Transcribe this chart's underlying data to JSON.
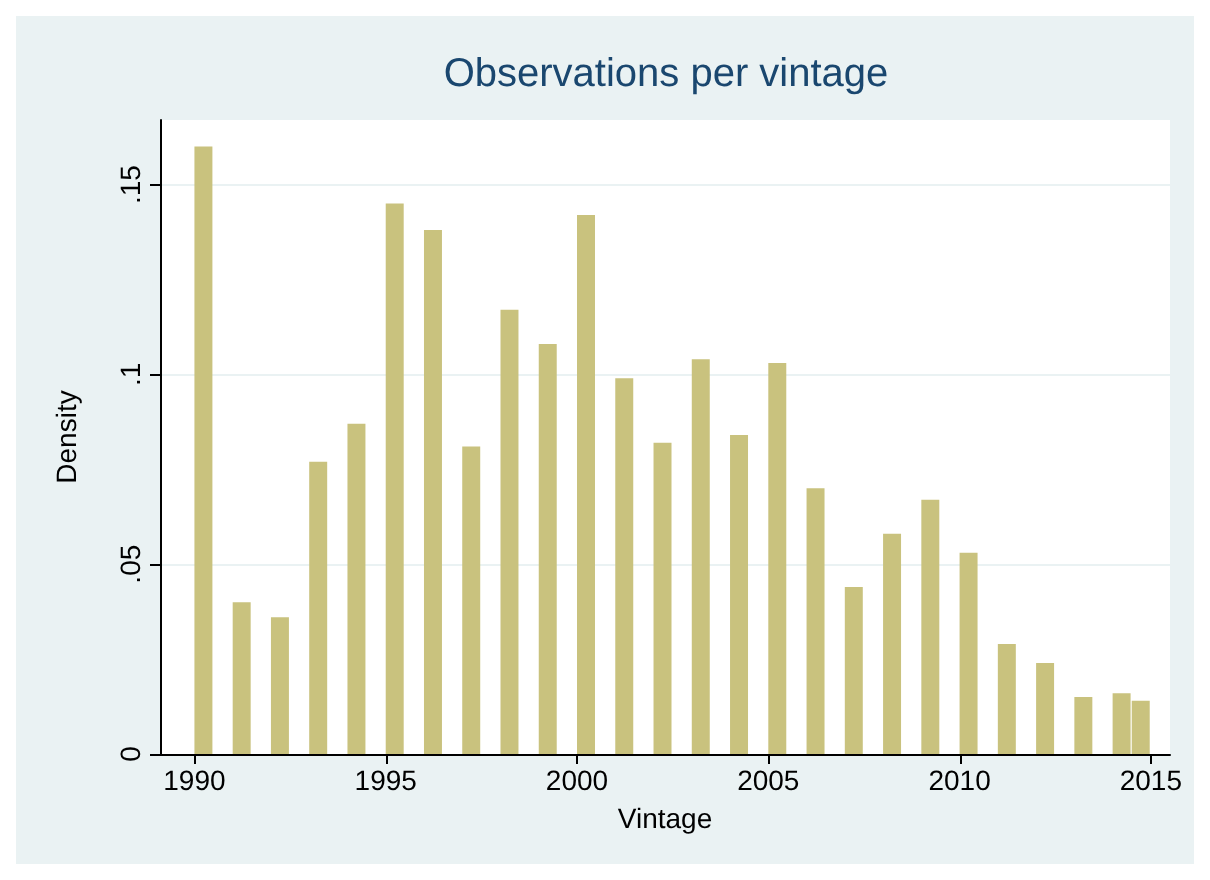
{
  "chart_data": {
    "type": "histogram",
    "title": "Observations per vintage",
    "xlabel": "Vintage",
    "ylabel": "Density",
    "color": "#c9c27e",
    "bins": [
      1990,
      1990.5,
      1991,
      1991.5,
      1992,
      1992.5,
      1993,
      1993.5,
      1994,
      1994.5,
      1995,
      1995.5,
      1996,
      1996.5,
      1997,
      1997.5,
      1998,
      1998.5,
      1999,
      1999.5,
      2000,
      2000.5,
      2001,
      2001.5,
      2002,
      2002.5,
      2003,
      2003.5,
      2004,
      2004.5,
      2005,
      2005.5,
      2006,
      2006.5,
      2007,
      2007.5,
      2008,
      2008.5,
      2009,
      2009.5,
      2010,
      2010.5,
      2011,
      2011.5,
      2012,
      2012.5,
      2013,
      2013.5,
      2014,
      2014.5,
      2015
    ],
    "values": [
      0.16,
      0,
      0.04,
      0,
      0.036,
      0,
      0.077,
      0,
      0.087,
      0,
      0.145,
      0,
      0.138,
      0,
      0.081,
      0,
      0.117,
      0,
      0.108,
      0,
      0.142,
      0,
      0.099,
      0,
      0.082,
      0,
      0.104,
      0,
      0.084,
      0,
      0.103,
      0,
      0.07,
      0,
      0.044,
      0,
      0.058,
      0,
      0.067,
      0,
      0.053,
      0,
      0.029,
      0,
      0.024,
      0,
      0.015,
      0,
      0.016,
      0.014
    ],
    "xlim": [
      1989.1,
      2015.5
    ],
    "xticks": [
      1990,
      1995,
      2000,
      2005,
      2010,
      2015
    ],
    "ylim": [
      0,
      0.167
    ],
    "yticks": [
      {
        "value": 0,
        "label": "0"
      },
      {
        "value": 0.05,
        "label": ".05"
      },
      {
        "value": 0.1,
        "label": ".1"
      },
      {
        "value": 0.15,
        "label": ".15"
      }
    ],
    "grid": "y"
  }
}
